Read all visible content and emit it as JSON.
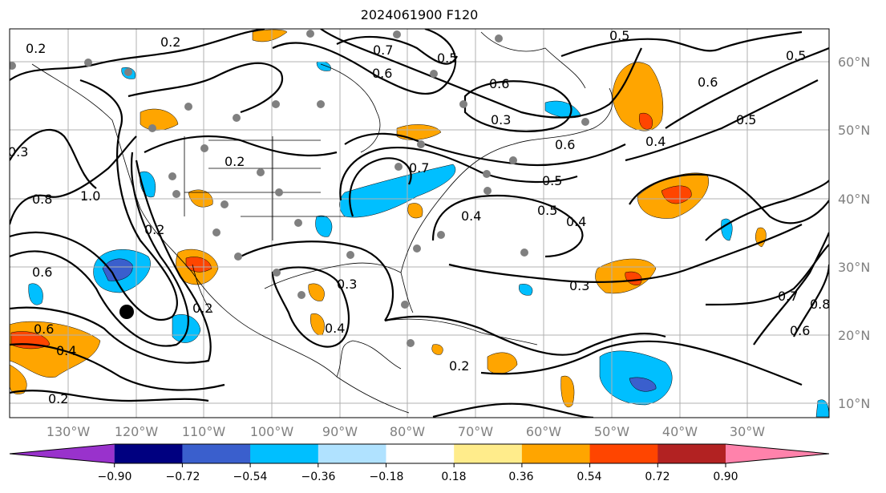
{
  "title": "2024061900 F120",
  "map": {
    "longitude_labels": [
      "130°W",
      "120°W",
      "110°W",
      "100°W",
      "90°W",
      "80°W",
      "70°W",
      "60°W",
      "50°W",
      "40°W",
      "30°W"
    ],
    "latitude_labels": [
      "60°N",
      "50°N",
      "40°N",
      "30°N",
      "20°N",
      "10°N"
    ],
    "contour_labels": [
      "0.2",
      "0.2",
      "0.2",
      "0.7",
      "0.6",
      "0.5",
      "0.6",
      "0.5",
      "0.6",
      "0.5",
      "0.4",
      "0.5",
      "0.2",
      "0.3",
      "0.6",
      "0.5",
      "0.7",
      "0.4",
      "0.5",
      "0.4",
      "0.8",
      "1.0",
      "0.6",
      "0.6",
      "0.4",
      "0.2",
      "0.3",
      "0.4",
      "0.3",
      "0.2",
      "0.7",
      "0.8",
      "0.6",
      "0.3",
      "0.2"
    ]
  },
  "colorbar": {
    "colors": [
      "#9932cc",
      "#000080",
      "#3a5fcd",
      "#00bfff",
      "#b0e2ff",
      "#ffffff",
      "#ffec8b",
      "#ffa500",
      "#ff4500",
      "#b22222",
      "#ff82ab"
    ],
    "ticks": [
      "−0.90",
      "−0.72",
      "−0.54",
      "−0.36",
      "−0.18",
      "0.18",
      "0.36",
      "0.54",
      "0.72",
      "0.90"
    ]
  }
}
